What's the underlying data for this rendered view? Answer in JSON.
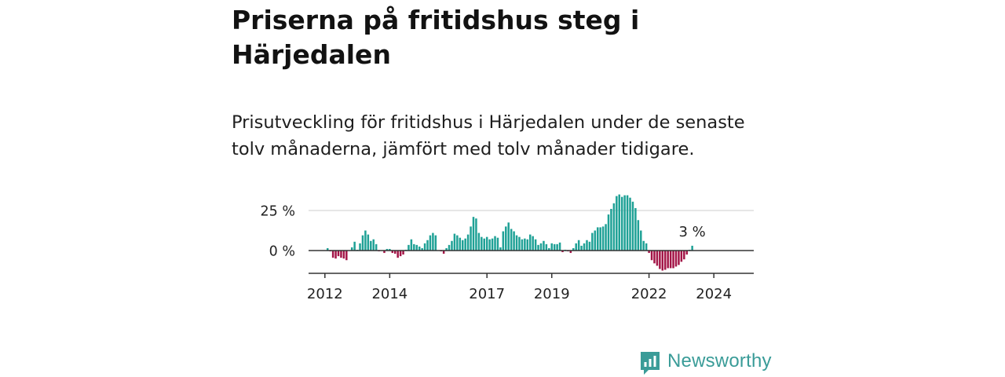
{
  "header": {
    "title": "Priserna på fritidshus steg i Härjedalen",
    "subtitle": "Prisutveckling för fritidshus i Härjedalen under de senaste tolv månaderna, jämfört med tolv månader tidigare."
  },
  "logo": {
    "text": "Newsworthy",
    "icon": "newsworthy-chart-icon",
    "color": "#3a9c98"
  },
  "chart_data": {
    "type": "bar",
    "x_unit": "month",
    "x_start": "2012-01",
    "x_end": "2024-09",
    "y_ticks": [
      {
        "value": 0,
        "label": "0 %"
      },
      {
        "value": 25,
        "label": "25 %"
      }
    ],
    "x_ticks": [
      {
        "value": "2012-01",
        "label": "2012"
      },
      {
        "value": "2014-01",
        "label": "2014"
      },
      {
        "value": "2017-01",
        "label": "2017"
      },
      {
        "value": "2019-01",
        "label": "2019"
      },
      {
        "value": "2022-01",
        "label": "2022"
      },
      {
        "value": "2024-01",
        "label": "2024"
      }
    ],
    "ylim": [
      -14,
      36
    ],
    "grid": true,
    "colors": {
      "positive": "#1fa196",
      "negative": "#a31547"
    },
    "annotation": {
      "label": "3 %",
      "value": 3
    },
    "values": [
      0,
      1.5,
      -0.5,
      -4.5,
      -5.0,
      -3.5,
      -4.5,
      -5.0,
      -6.0,
      0,
      2.0,
      5.5,
      0.5,
      4.5,
      9.5,
      12.5,
      10.0,
      6.0,
      7.0,
      4.0,
      -0.5,
      0,
      -1.5,
      1.0,
      1.0,
      -1.5,
      -2.0,
      -4.5,
      -3.5,
      -2.5,
      0.5,
      3.5,
      7.0,
      4.0,
      3.5,
      2.5,
      1.5,
      4.5,
      6.5,
      9.5,
      11.0,
      9.5,
      0,
      -0.5,
      -2.0,
      1.5,
      3.5,
      6.0,
      10.5,
      9.5,
      8.0,
      6.5,
      7.5,
      10.0,
      15.0,
      21.0,
      20.0,
      11.0,
      8.5,
      7.5,
      8.5,
      7.0,
      7.5,
      9.0,
      8.0,
      2.0,
      12.0,
      15.0,
      17.5,
      13.5,
      12.0,
      9.5,
      8.5,
      7.0,
      7.5,
      7.0,
      10.0,
      9.0,
      7.0,
      3.5,
      4.5,
      6.0,
      4.0,
      1.5,
      4.5,
      4.0,
      4.0,
      5.0,
      -1.0,
      0.5,
      -0.5,
      -1.5,
      1.5,
      4.5,
      6.5,
      3.0,
      4.5,
      6.5,
      5.5,
      11.0,
      12.5,
      14.5,
      14.5,
      15.0,
      16.5,
      22.5,
      26.0,
      29.5,
      34.0,
      35.0,
      33.5,
      34.5,
      34.5,
      33.0,
      30.5,
      26.5,
      19.0,
      12.5,
      6.0,
      4.5,
      -1.5,
      -6.0,
      -8.0,
      -9.5,
      -11.5,
      -12.5,
      -12.0,
      -11.0,
      -11.0,
      -11.0,
      -10.0,
      -9.0,
      -7.0,
      -5.5,
      -2.5,
      0.5,
      3.0
    ]
  }
}
